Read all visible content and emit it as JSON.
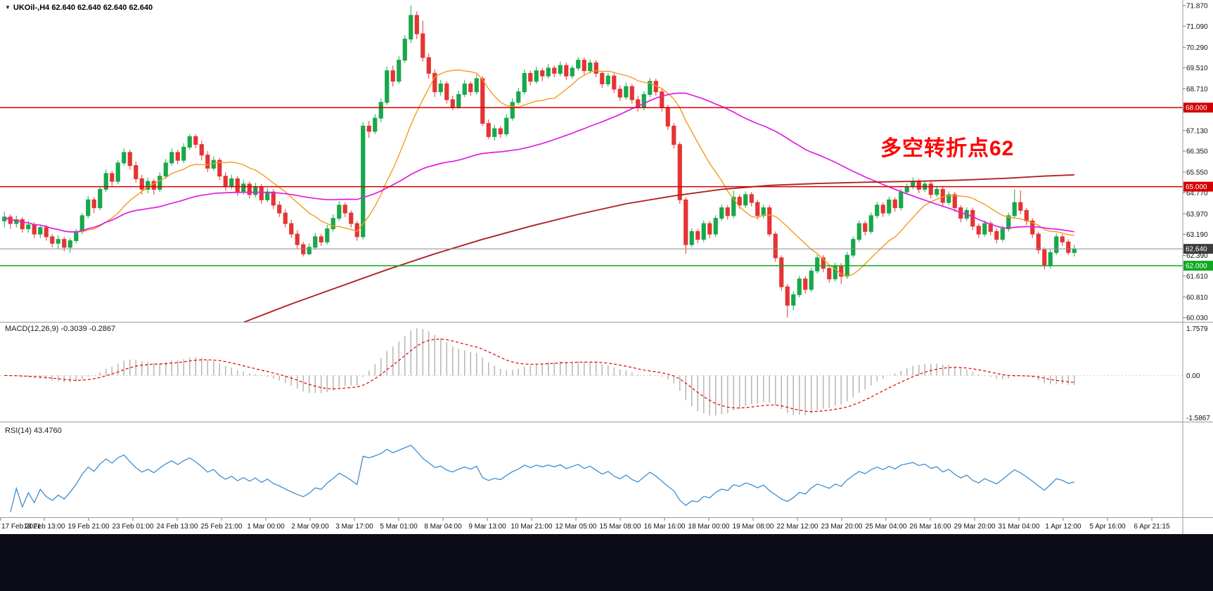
{
  "window": {
    "symbol_label": "UKOil-,H4  62.640 62.640 62.640 62.640"
  },
  "chart_data": {
    "type": "candlestick",
    "title": "UKOil- H4 candlestick chart",
    "symbol": "UKOil-",
    "timeframe": "H4",
    "ylim": [
      60.03,
      71.87
    ],
    "y_ticks": [
      "71.870",
      "71.090",
      "70.290",
      "69.510",
      "68.710",
      "67.930",
      "67.130",
      "66.350",
      "65.550",
      "64.770",
      "63.970",
      "63.190",
      "62.390",
      "61.610",
      "60.810",
      "60.030"
    ],
    "x_labels": [
      "17 Feb 2021",
      "18 Feb 13:00",
      "19 Feb 21:00",
      "23 Feb 01:00",
      "24 Feb 13:00",
      "25 Feb 21:00",
      "1 Mar 00:00",
      "2 Mar 09:00",
      "3 Mar 17:00",
      "5 Mar 01:00",
      "8 Mar 04:00",
      "9 Mar 13:00",
      "10 Mar 21:00",
      "12 Mar 05:00",
      "15 Mar 08:00",
      "16 Mar 16:00",
      "18 Mar 00:00",
      "19 Mar 08:00",
      "22 Mar 12:00",
      "23 Mar 20:00",
      "25 Mar 04:00",
      "26 Mar 16:00",
      "29 Mar 20:00",
      "31 Mar 04:00",
      "1 Apr 12:00",
      "5 Apr 16:00",
      "6 Apr 21:15"
    ],
    "colors": {
      "up": "#17a84b",
      "down": "#e43434",
      "background": "#ffffff",
      "axis_text": "#111111",
      "current_line": "#8a8a8a"
    },
    "hlines": [
      {
        "price": 68.0,
        "label": "68.000",
        "color": "#d40000"
      },
      {
        "price": 65.0,
        "label": "65.000",
        "color": "#d40000"
      },
      {
        "price": 62.0,
        "label": "62.000",
        "color": "#0fa81e"
      }
    ],
    "current_price": {
      "value": 62.64,
      "label": "62.640",
      "badge_color": "#3c3c3c"
    },
    "annotation": {
      "text": "多空转折点62",
      "color": "#ff0000"
    },
    "moving_averages": {
      "fast": {
        "period": 13,
        "color": "#f59a1d"
      },
      "medium": {
        "period": 55,
        "color": "#e01ee0"
      },
      "slow": {
        "color": "#b22222",
        "points": [
          [
            40,
            59.85
          ],
          [
            48,
            60.55
          ],
          [
            56,
            61.2
          ],
          [
            64,
            61.85
          ],
          [
            72,
            62.45
          ],
          [
            80,
            63.0
          ],
          [
            88,
            63.5
          ],
          [
            96,
            63.95
          ],
          [
            104,
            64.35
          ],
          [
            112,
            64.65
          ],
          [
            120,
            64.9
          ],
          [
            128,
            65.05
          ],
          [
            136,
            65.12
          ],
          [
            144,
            65.17
          ],
          [
            152,
            65.2
          ],
          [
            160,
            65.25
          ],
          [
            168,
            65.32
          ],
          [
            174,
            65.4
          ],
          [
            179,
            65.45
          ]
        ]
      }
    },
    "indicators": {
      "macd": {
        "full_label": "MACD(12,26,9) -0.3039 -0.2867",
        "params": [
          12,
          26,
          9
        ],
        "current_macd": -0.3039,
        "current_signal": -0.2867,
        "ylim": [
          -1.5867,
          1.7579
        ],
        "y_ticks": [
          "1.7579",
          "0.00",
          "-1.5867"
        ],
        "histogram_color": "#b9b9b9",
        "signal_color": "#e00000"
      },
      "rsi": {
        "full_label": "RSI(14) 43.4760",
        "period": 14,
        "current_value": 43.476,
        "color": "#3e8ed0",
        "ylim": [
          15,
          85
        ]
      }
    },
    "ohlc": [
      [
        63.7,
        64.05,
        63.45,
        63.85
      ],
      [
        63.85,
        63.95,
        63.4,
        63.6
      ],
      [
        63.6,
        63.9,
        63.45,
        63.75
      ],
      [
        63.75,
        63.85,
        63.25,
        63.4
      ],
      [
        63.4,
        63.7,
        63.25,
        63.55
      ],
      [
        63.55,
        63.65,
        63.05,
        63.2
      ],
      [
        63.2,
        63.55,
        63.05,
        63.45
      ],
      [
        63.45,
        63.55,
        62.95,
        63.1
      ],
      [
        63.1,
        63.2,
        62.7,
        62.85
      ],
      [
        62.85,
        63.15,
        62.65,
        63.0
      ],
      [
        63.0,
        63.1,
        62.55,
        62.7
      ],
      [
        62.7,
        63.05,
        62.5,
        62.95
      ],
      [
        62.95,
        63.4,
        62.85,
        63.3
      ],
      [
        63.3,
        64.0,
        63.2,
        63.9
      ],
      [
        63.9,
        64.65,
        63.8,
        64.5
      ],
      [
        64.5,
        64.6,
        64.0,
        64.2
      ],
      [
        64.2,
        65.0,
        64.1,
        64.9
      ],
      [
        64.9,
        65.65,
        64.8,
        65.5
      ],
      [
        65.5,
        65.6,
        65.0,
        65.2
      ],
      [
        65.2,
        66.0,
        65.1,
        65.9
      ],
      [
        65.9,
        66.45,
        65.8,
        66.3
      ],
      [
        66.3,
        66.4,
        65.65,
        65.8
      ],
      [
        65.8,
        65.95,
        65.15,
        65.3
      ],
      [
        65.3,
        65.45,
        64.7,
        64.9
      ],
      [
        64.9,
        65.35,
        64.75,
        65.2
      ],
      [
        65.2,
        65.3,
        64.7,
        64.9
      ],
      [
        64.9,
        65.55,
        64.8,
        65.4
      ],
      [
        65.4,
        66.05,
        65.3,
        65.9
      ],
      [
        65.9,
        66.45,
        65.8,
        66.3
      ],
      [
        66.3,
        66.4,
        65.85,
        66.0
      ],
      [
        66.0,
        66.65,
        65.9,
        66.5
      ],
      [
        66.5,
        67.0,
        66.4,
        66.9
      ],
      [
        66.9,
        67.0,
        66.45,
        66.6
      ],
      [
        66.6,
        66.75,
        66.0,
        66.2
      ],
      [
        66.2,
        66.35,
        65.55,
        65.7
      ],
      [
        65.7,
        66.15,
        65.6,
        66.0
      ],
      [
        66.0,
        66.1,
        65.25,
        65.4
      ],
      [
        65.4,
        65.55,
        64.85,
        65.0
      ],
      [
        65.0,
        65.45,
        64.9,
        65.3
      ],
      [
        65.3,
        65.4,
        64.65,
        64.8
      ],
      [
        64.8,
        65.25,
        64.7,
        65.1
      ],
      [
        65.1,
        65.2,
        64.55,
        64.7
      ],
      [
        64.7,
        65.15,
        64.6,
        65.0
      ],
      [
        65.0,
        65.1,
        64.35,
        64.5
      ],
      [
        64.5,
        64.95,
        64.4,
        64.8
      ],
      [
        64.8,
        64.9,
        64.15,
        64.3
      ],
      [
        64.3,
        64.45,
        63.85,
        64.0
      ],
      [
        64.0,
        64.15,
        63.45,
        63.6
      ],
      [
        63.6,
        63.75,
        63.05,
        63.2
      ],
      [
        63.2,
        63.35,
        62.65,
        62.8
      ],
      [
        62.8,
        62.9,
        62.35,
        62.45
      ],
      [
        62.45,
        62.85,
        62.4,
        62.7
      ],
      [
        62.7,
        63.25,
        62.6,
        63.1
      ],
      [
        63.1,
        63.2,
        62.75,
        62.9
      ],
      [
        62.9,
        63.55,
        62.8,
        63.4
      ],
      [
        63.4,
        63.95,
        63.3,
        63.8
      ],
      [
        63.8,
        64.45,
        63.7,
        64.3
      ],
      [
        64.3,
        64.4,
        63.85,
        64.0
      ],
      [
        64.0,
        64.1,
        63.45,
        63.6
      ],
      [
        63.6,
        63.7,
        62.95,
        63.1
      ],
      [
        63.1,
        67.45,
        63.0,
        67.3
      ],
      [
        67.3,
        67.5,
        66.85,
        67.1
      ],
      [
        67.1,
        67.75,
        67.0,
        67.6
      ],
      [
        67.6,
        68.35,
        67.45,
        68.2
      ],
      [
        68.2,
        69.55,
        68.1,
        69.4
      ],
      [
        69.4,
        69.6,
        68.8,
        69.0
      ],
      [
        69.0,
        69.95,
        68.9,
        69.8
      ],
      [
        69.8,
        70.75,
        69.7,
        70.6
      ],
      [
        70.6,
        71.87,
        70.45,
        71.5
      ],
      [
        71.5,
        71.65,
        70.6,
        70.8
      ],
      [
        70.8,
        71.3,
        69.75,
        69.9
      ],
      [
        69.9,
        70.05,
        69.1,
        69.3
      ],
      [
        69.3,
        69.45,
        68.4,
        68.6
      ],
      [
        68.6,
        69.05,
        68.45,
        68.9
      ],
      [
        68.9,
        69.0,
        68.15,
        68.3
      ],
      [
        68.3,
        68.45,
        67.9,
        68.0
      ],
      [
        68.0,
        68.65,
        67.95,
        68.5
      ],
      [
        68.5,
        69.05,
        68.4,
        68.9
      ],
      [
        68.9,
        69.0,
        68.45,
        68.6
      ],
      [
        68.6,
        69.25,
        68.5,
        69.1
      ],
      [
        69.1,
        69.2,
        67.3,
        67.4
      ],
      [
        67.4,
        67.55,
        66.8,
        66.9
      ],
      [
        66.9,
        67.35,
        66.75,
        67.2
      ],
      [
        67.2,
        67.3,
        66.85,
        67.0
      ],
      [
        67.0,
        67.75,
        66.9,
        67.6
      ],
      [
        67.6,
        68.35,
        67.5,
        68.2
      ],
      [
        68.2,
        68.75,
        68.1,
        68.6
      ],
      [
        68.6,
        69.45,
        68.5,
        69.3
      ],
      [
        69.3,
        69.4,
        68.85,
        69.0
      ],
      [
        69.0,
        69.55,
        68.9,
        69.4
      ],
      [
        69.4,
        69.5,
        69.0,
        69.2
      ],
      [
        69.2,
        69.65,
        69.1,
        69.5
      ],
      [
        69.5,
        69.6,
        69.15,
        69.3
      ],
      [
        69.3,
        69.75,
        69.2,
        69.6
      ],
      [
        69.6,
        69.7,
        69.05,
        69.2
      ],
      [
        69.2,
        69.6,
        69.1,
        69.5
      ],
      [
        69.5,
        69.92,
        69.4,
        69.8
      ],
      [
        69.8,
        69.9,
        69.25,
        69.4
      ],
      [
        69.4,
        69.82,
        69.3,
        69.7
      ],
      [
        69.7,
        69.8,
        69.15,
        69.3
      ],
      [
        69.3,
        69.4,
        68.75,
        68.9
      ],
      [
        68.9,
        69.32,
        68.8,
        69.2
      ],
      [
        69.2,
        69.3,
        68.55,
        68.7
      ],
      [
        68.7,
        68.85,
        68.25,
        68.4
      ],
      [
        68.4,
        68.95,
        68.3,
        68.8
      ],
      [
        68.8,
        68.9,
        68.15,
        68.3
      ],
      [
        68.3,
        68.45,
        67.85,
        68.0
      ],
      [
        68.0,
        68.62,
        67.9,
        68.5
      ],
      [
        68.5,
        69.12,
        68.4,
        69.0
      ],
      [
        69.0,
        69.1,
        68.45,
        68.6
      ],
      [
        68.6,
        68.72,
        67.85,
        68.0
      ],
      [
        68.0,
        68.1,
        67.15,
        67.3
      ],
      [
        67.3,
        67.42,
        66.45,
        66.6
      ],
      [
        66.6,
        66.7,
        64.35,
        64.5
      ],
      [
        64.5,
        64.6,
        62.45,
        62.8
      ],
      [
        62.8,
        63.42,
        62.7,
        63.3
      ],
      [
        63.3,
        63.4,
        62.85,
        63.0
      ],
      [
        63.0,
        63.72,
        62.9,
        63.6
      ],
      [
        63.6,
        63.7,
        63.05,
        63.2
      ],
      [
        63.2,
        63.92,
        63.1,
        63.8
      ],
      [
        63.8,
        64.32,
        63.7,
        64.2
      ],
      [
        64.2,
        64.3,
        63.75,
        63.9
      ],
      [
        63.9,
        64.85,
        63.8,
        64.6
      ],
      [
        64.6,
        64.7,
        64.15,
        64.3
      ],
      [
        64.3,
        64.82,
        64.2,
        64.7
      ],
      [
        64.7,
        64.8,
        64.25,
        64.4
      ],
      [
        64.4,
        64.5,
        63.75,
        63.9
      ],
      [
        63.9,
        64.32,
        63.8,
        64.2
      ],
      [
        64.2,
        64.3,
        63.1,
        63.2
      ],
      [
        63.2,
        63.3,
        62.15,
        62.3
      ],
      [
        62.3,
        62.4,
        61.05,
        61.2
      ],
      [
        61.2,
        61.3,
        60.03,
        60.5
      ],
      [
        60.5,
        61.02,
        60.3,
        60.9
      ],
      [
        60.9,
        61.62,
        60.8,
        61.5
      ],
      [
        61.5,
        61.6,
        60.95,
        61.1
      ],
      [
        61.1,
        61.92,
        61.0,
        61.8
      ],
      [
        61.8,
        62.42,
        61.7,
        62.3
      ],
      [
        62.3,
        62.4,
        61.75,
        61.9
      ],
      [
        61.9,
        62.0,
        61.35,
        61.5
      ],
      [
        61.5,
        62.12,
        61.4,
        62.0
      ],
      [
        62.0,
        62.1,
        61.3,
        61.6
      ],
      [
        61.6,
        62.52,
        61.5,
        62.4
      ],
      [
        62.4,
        63.12,
        62.3,
        63.0
      ],
      [
        63.0,
        63.72,
        62.9,
        63.6
      ],
      [
        63.6,
        63.7,
        63.15,
        63.3
      ],
      [
        63.3,
        64.02,
        63.2,
        63.9
      ],
      [
        63.9,
        64.42,
        63.8,
        64.3
      ],
      [
        64.3,
        64.4,
        63.85,
        64.0
      ],
      [
        64.0,
        64.62,
        63.9,
        64.5
      ],
      [
        64.5,
        64.6,
        64.05,
        64.2
      ],
      [
        64.2,
        64.92,
        64.1,
        64.8
      ],
      [
        64.8,
        65.12,
        64.7,
        65.0
      ],
      [
        65.0,
        65.35,
        64.9,
        65.2
      ],
      [
        65.2,
        65.3,
        64.75,
        64.9
      ],
      [
        64.9,
        65.22,
        64.8,
        65.1
      ],
      [
        65.1,
        65.2,
        64.55,
        64.7
      ],
      [
        64.7,
        65.02,
        64.6,
        64.9
      ],
      [
        64.9,
        65.0,
        64.25,
        64.4
      ],
      [
        64.4,
        64.82,
        64.3,
        64.7
      ],
      [
        64.7,
        64.8,
        64.05,
        64.2
      ],
      [
        64.2,
        64.3,
        63.65,
        63.8
      ],
      [
        63.8,
        64.22,
        63.7,
        64.1
      ],
      [
        64.1,
        64.2,
        63.35,
        63.5
      ],
      [
        63.5,
        63.6,
        63.05,
        63.2
      ],
      [
        63.2,
        63.72,
        63.1,
        63.6
      ],
      [
        63.6,
        63.7,
        63.15,
        63.3
      ],
      [
        63.3,
        63.4,
        62.85,
        63.0
      ],
      [
        63.0,
        63.52,
        62.9,
        63.4
      ],
      [
        63.4,
        64.02,
        63.3,
        63.9
      ],
      [
        63.9,
        64.9,
        63.8,
        64.4
      ],
      [
        64.4,
        64.85,
        63.95,
        64.1
      ],
      [
        64.1,
        64.2,
        63.55,
        63.7
      ],
      [
        63.7,
        63.8,
        63.05,
        63.2
      ],
      [
        63.2,
        63.3,
        62.45,
        62.6
      ],
      [
        62.6,
        62.7,
        61.85,
        62.0
      ],
      [
        62.0,
        62.62,
        61.9,
        62.5
      ],
      [
        62.5,
        63.22,
        62.4,
        63.1
      ],
      [
        63.1,
        63.2,
        62.75,
        62.9
      ],
      [
        62.9,
        63.0,
        62.4,
        62.5
      ],
      [
        62.5,
        62.8,
        62.35,
        62.64
      ]
    ]
  }
}
